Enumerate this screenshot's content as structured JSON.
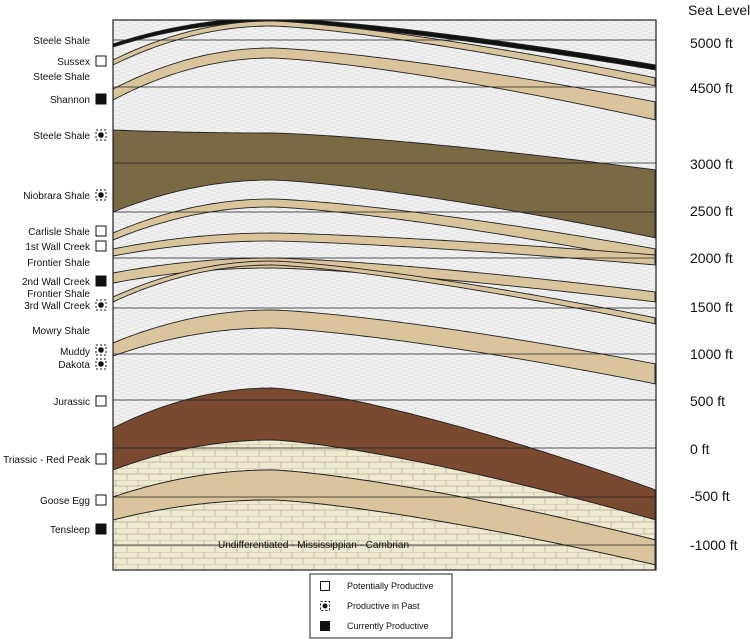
{
  "elevation_labels": [
    {
      "text": "Sea Level"
    },
    {
      "text": "5000 ft"
    },
    {
      "text": "4500 ft"
    },
    {
      "text": "3000 ft"
    },
    {
      "text": "2500 ft"
    },
    {
      "text": "2000 ft"
    },
    {
      "text": "1500 ft"
    },
    {
      "text": "1000 ft"
    },
    {
      "text": "500 ft"
    },
    {
      "text": "0 ft"
    },
    {
      "text": "-500 ft"
    },
    {
      "text": "-1000 ft"
    }
  ],
  "formations": [
    {
      "name": "Steele Shale",
      "status": "none"
    },
    {
      "name": "Sussex",
      "status": "potential"
    },
    {
      "name": "Steele Shale",
      "status": "none"
    },
    {
      "name": "Shannon",
      "status": "current"
    },
    {
      "name": "Steele Shale",
      "status": "past"
    },
    {
      "name": "Niobrara Shale",
      "status": "past"
    },
    {
      "name": "Carlisle Shale",
      "status": "potential"
    },
    {
      "name": "1st Wall Creek",
      "status": "potential"
    },
    {
      "name": "Frontier Shale",
      "status": "none"
    },
    {
      "name": "2nd Wall Creek",
      "status": "current"
    },
    {
      "name": "Frontier Shale",
      "status": "none"
    },
    {
      "name": "3rd Wall Creek",
      "status": "past"
    },
    {
      "name": "Mowry Shale",
      "status": "none"
    },
    {
      "name": "Muddy",
      "status": "past"
    },
    {
      "name": "Dakota",
      "status": "past"
    },
    {
      "name": "Jurassic",
      "status": "potential"
    },
    {
      "name": "Triassic - Red Peak",
      "status": "potential"
    },
    {
      "name": "Goose Egg",
      "status": "potential"
    },
    {
      "name": "Tensleep",
      "status": "current"
    }
  ],
  "basement_label": "Undifferentiated - Mississippian - Cambrian",
  "legend": [
    {
      "symbol": "potential",
      "label": "Potentially Productive"
    },
    {
      "symbol": "past",
      "label": "Productive in Past"
    },
    {
      "symbol": "current",
      "label": "Currently Productive"
    }
  ],
  "colors": {
    "sand": "#d9c49c",
    "dark_shale": "#7a6a44",
    "red_bed": "#7a4a30",
    "limestone": "#efe9d2",
    "shale_fill": "#eeeeee"
  }
}
